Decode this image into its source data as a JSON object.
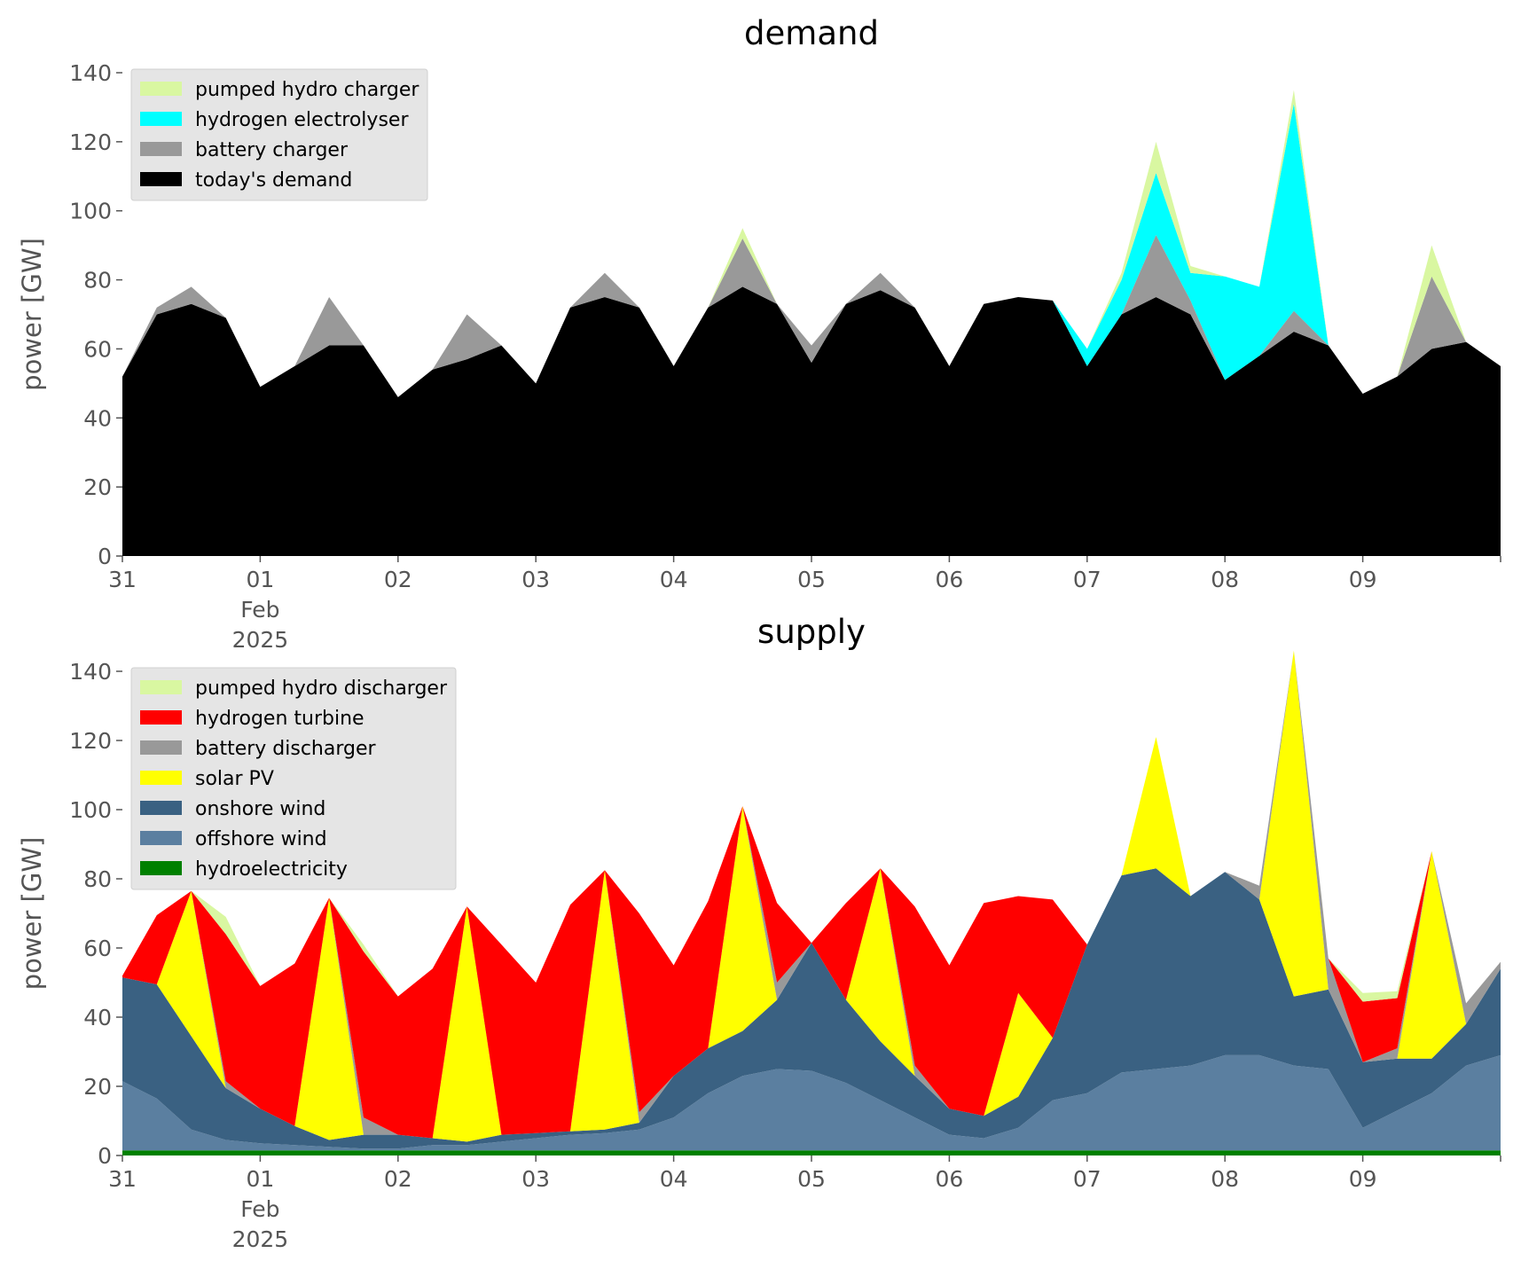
{
  "chart_data": [
    {
      "type": "area",
      "stacked": true,
      "title": "demand",
      "ylabel": "power [GW]",
      "xlabel": "",
      "ylim": [
        0,
        140
      ],
      "xlim": [
        0,
        10
      ],
      "yticks": [
        0,
        20,
        40,
        60,
        80,
        100,
        120,
        140
      ],
      "xticks": [
        {
          "x": 0,
          "lines": [
            "31"
          ]
        },
        {
          "x": 1,
          "lines": [
            "01",
            "Feb",
            "2025"
          ]
        },
        {
          "x": 2,
          "lines": [
            "02"
          ]
        },
        {
          "x": 3,
          "lines": [
            "03"
          ]
        },
        {
          "x": 4,
          "lines": [
            "04"
          ]
        },
        {
          "x": 5,
          "lines": [
            "05"
          ]
        },
        {
          "x": 6,
          "lines": [
            "06"
          ]
        },
        {
          "x": 7,
          "lines": [
            "07"
          ]
        },
        {
          "x": 8,
          "lines": [
            "08"
          ]
        },
        {
          "x": 9,
          "lines": [
            "09"
          ]
        }
      ],
      "grid": false,
      "legend_position": "upper-left",
      "x": [
        0,
        0.25,
        0.5,
        0.75,
        1,
        1.25,
        1.5,
        1.75,
        2,
        2.25,
        2.5,
        2.75,
        3,
        3.25,
        3.5,
        3.75,
        4,
        4.25,
        4.5,
        4.75,
        5,
        5.25,
        5.5,
        5.75,
        6,
        6.25,
        6.5,
        6.75,
        7,
        7.25,
        7.5,
        7.75,
        8,
        8.25,
        8.5,
        8.75,
        9,
        9.25,
        9.5,
        9.75,
        10
      ],
      "series": [
        {
          "name": "today's demand",
          "color": "#000000",
          "values": [
            52,
            70,
            73,
            69,
            49,
            55,
            61,
            61,
            46,
            54,
            57,
            61,
            50,
            72,
            75,
            72,
            55,
            72,
            78,
            73,
            56,
            73,
            77,
            72,
            55,
            73,
            75,
            74,
            55,
            70,
            75,
            70,
            51,
            58,
            65,
            61,
            47,
            52,
            60,
            62,
            55
          ]
        },
        {
          "name": "battery charger",
          "color": "#999999",
          "values": [
            0,
            2,
            5,
            0,
            0,
            0,
            14,
            0,
            0,
            0,
            13,
            0,
            0,
            0,
            7,
            0,
            0,
            0,
            14,
            0,
            5,
            0,
            5,
            0,
            0,
            0,
            0,
            0,
            0,
            0,
            18,
            4,
            0,
            0,
            6,
            0,
            0,
            0,
            21,
            0,
            0
          ]
        },
        {
          "name": "hydrogen electrolyser",
          "color": "#00ffff",
          "values": [
            0,
            0,
            0,
            0,
            0,
            0,
            0,
            0,
            0,
            0,
            0,
            0,
            0,
            0,
            0,
            0,
            0,
            0,
            0,
            0,
            0,
            0,
            0,
            0,
            0,
            0,
            0,
            0,
            5,
            10,
            18,
            8,
            30,
            20,
            60,
            0,
            0,
            0,
            0,
            0,
            0
          ]
        },
        {
          "name": "pumped hydro charger",
          "color": "#d9f7a1",
          "values": [
            0,
            0,
            0,
            0,
            0,
            0,
            0,
            0,
            0,
            0,
            0,
            0,
            0,
            0,
            0,
            0,
            0,
            0,
            3,
            0,
            0,
            0,
            0,
            0,
            0,
            0,
            0,
            0,
            0,
            2,
            9,
            2,
            0,
            0,
            4,
            0,
            0,
            0,
            9,
            0,
            0
          ]
        }
      ]
    },
    {
      "type": "area",
      "stacked": true,
      "title": "supply",
      "ylabel": "power [GW]",
      "xlabel": "",
      "ylim": [
        0,
        140
      ],
      "xlim": [
        0,
        10
      ],
      "yticks": [
        0,
        20,
        40,
        60,
        80,
        100,
        120,
        140
      ],
      "xticks": [
        {
          "x": 0,
          "lines": [
            "31"
          ]
        },
        {
          "x": 1,
          "lines": [
            "01",
            "Feb",
            "2025"
          ]
        },
        {
          "x": 2,
          "lines": [
            "02"
          ]
        },
        {
          "x": 3,
          "lines": [
            "03"
          ]
        },
        {
          "x": 4,
          "lines": [
            "04"
          ]
        },
        {
          "x": 5,
          "lines": [
            "05"
          ]
        },
        {
          "x": 6,
          "lines": [
            "06"
          ]
        },
        {
          "x": 7,
          "lines": [
            "07"
          ]
        },
        {
          "x": 8,
          "lines": [
            "08"
          ]
        },
        {
          "x": 9,
          "lines": [
            "09"
          ]
        }
      ],
      "grid": false,
      "legend_position": "upper-left",
      "x": [
        0,
        0.25,
        0.5,
        0.75,
        1,
        1.25,
        1.5,
        1.75,
        2,
        2.25,
        2.5,
        2.75,
        3,
        3.25,
        3.5,
        3.75,
        4,
        4.25,
        4.5,
        4.75,
        5,
        5.25,
        5.5,
        5.75,
        6,
        6.25,
        6.5,
        6.75,
        7,
        7.25,
        7.5,
        7.75,
        8,
        8.25,
        8.5,
        8.75,
        9,
        9.25,
        9.5,
        9.75,
        10
      ],
      "series": [
        {
          "name": "hydroelectricity",
          "color": "#008000",
          "values": [
            1.5,
            1.5,
            1.5,
            1.5,
            1.5,
            1.5,
            1.5,
            1.5,
            1.5,
            1.5,
            1.5,
            1.5,
            1.5,
            1.5,
            1.5,
            1.5,
            1.5,
            1.5,
            1.5,
            1.5,
            1.5,
            1.5,
            1.5,
            1.5,
            1.5,
            1.5,
            1.5,
            1.5,
            1.5,
            1.5,
            1.5,
            1.5,
            1.5,
            1.5,
            1.5,
            1.5,
            1.5,
            1.5,
            1.5,
            1.5,
            1.5
          ]
        },
        {
          "name": "offshore wind",
          "color": "#5b7fa0",
          "values": [
            20,
            15,
            6,
            3,
            2,
            1.5,
            1,
            0.5,
            0.5,
            1.5,
            1.5,
            2.5,
            3.5,
            4.5,
            5,
            6,
            9.5,
            16.5,
            21.5,
            23.5,
            23,
            19.5,
            14.5,
            9.5,
            4.5,
            3.5,
            6.5,
            14.5,
            16.5,
            22.5,
            23.5,
            24.5,
            27.5,
            27.5,
            24.5,
            23.5,
            6.5,
            11.5,
            16.5,
            24.5,
            27.5
          ]
        },
        {
          "name": "onshore wind",
          "color": "#3a6182",
          "values": [
            30,
            33,
            27,
            15,
            10,
            5.5,
            2,
            4,
            4,
            2,
            1,
            2,
            1.5,
            1,
            1,
            2,
            12,
            13,
            13,
            20,
            37,
            24,
            17,
            12,
            7.5,
            6.5,
            9,
            18,
            43,
            57,
            58,
            49,
            53,
            45,
            20,
            23,
            19,
            15,
            10,
            12,
            25
          ]
        },
        {
          "name": "solar PV",
          "color": "#ffff00",
          "values": [
            0,
            0,
            42,
            0,
            0,
            0,
            70,
            0,
            0,
            0,
            68,
            0,
            0,
            0,
            75,
            0,
            0,
            0,
            65,
            0,
            0,
            0,
            50,
            0,
            0,
            0,
            30,
            0,
            0,
            0,
            38,
            0,
            0,
            0,
            100,
            0,
            0,
            0,
            60,
            0,
            0
          ]
        },
        {
          "name": "battery discharger",
          "color": "#999999",
          "values": [
            0,
            0,
            0,
            2,
            0,
            0,
            0,
            5,
            0,
            0,
            0,
            0,
            0,
            0,
            0,
            3,
            0,
            0,
            0,
            5,
            0,
            0,
            0,
            3,
            0,
            0,
            0,
            0,
            0,
            0,
            0,
            0,
            0,
            4,
            0,
            9,
            0,
            3,
            0,
            6,
            2
          ]
        },
        {
          "name": "hydrogen turbine",
          "color": "#ff0000",
          "values": [
            0.5,
            20,
            0,
            42.5,
            35.5,
            47,
            0,
            48,
            40,
            49,
            0,
            55,
            43.5,
            65.5,
            0,
            57.5,
            32,
            42.5,
            0,
            23,
            0,
            28,
            0,
            46,
            41.5,
            61.5,
            28,
            40,
            0,
            0,
            0,
            0,
            0,
            0,
            0,
            0,
            17.5,
            14.5,
            0,
            0,
            0
          ]
        },
        {
          "name": "pumped hydro discharger",
          "color": "#d9f7a1",
          "values": [
            0,
            0,
            0,
            5,
            0,
            0,
            0,
            2,
            0,
            0,
            0,
            0,
            0,
            0,
            0,
            0,
            0,
            0,
            0,
            0,
            0,
            0,
            0,
            0,
            0,
            0,
            0,
            0,
            0,
            0,
            0,
            0,
            0,
            0,
            0,
            0,
            2.5,
            2,
            0,
            0,
            0
          ]
        }
      ]
    }
  ]
}
